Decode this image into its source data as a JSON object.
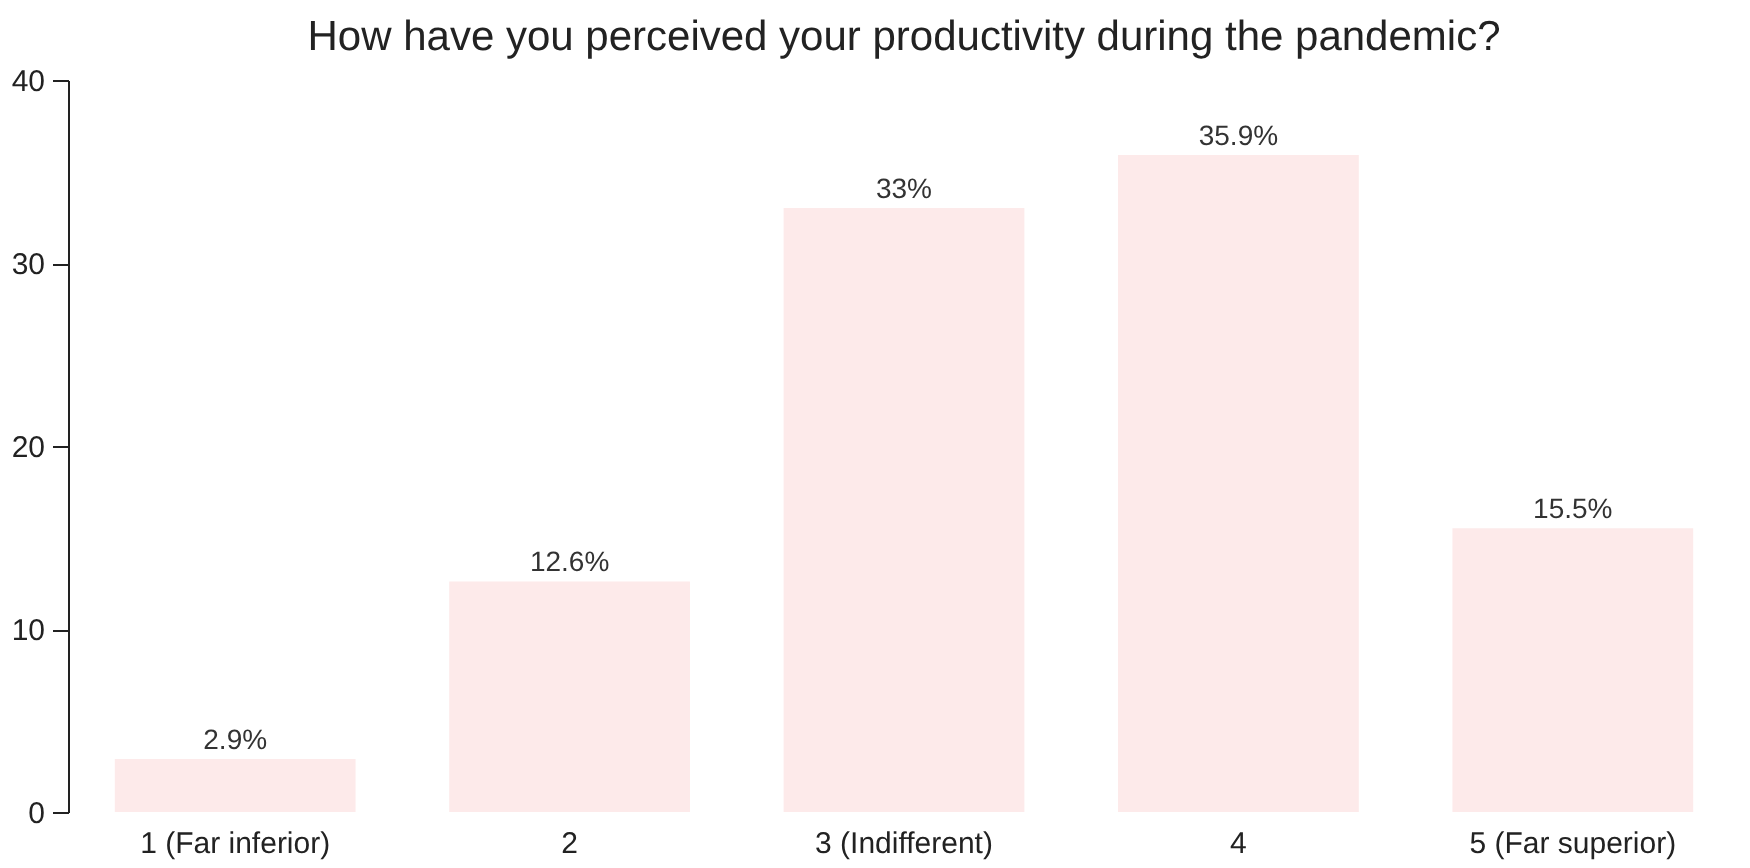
{
  "chart_data": {
    "type": "bar",
    "title": "How have you perceived your productivity during the pandemic?",
    "categories": [
      "1 (Far inferior)",
      "2",
      "3 (Indifferent)",
      "4",
      "5 (Far superior)"
    ],
    "values": [
      2.9,
      12.6,
      33,
      35.9,
      15.5
    ],
    "value_labels": [
      "2.9%",
      "12.6%",
      "33%",
      "35.9%",
      "15.5%"
    ],
    "color": "#fdeaea",
    "ylim": [
      0,
      40
    ],
    "yticks": [
      0,
      10,
      20,
      30,
      40
    ],
    "grid": false
  }
}
